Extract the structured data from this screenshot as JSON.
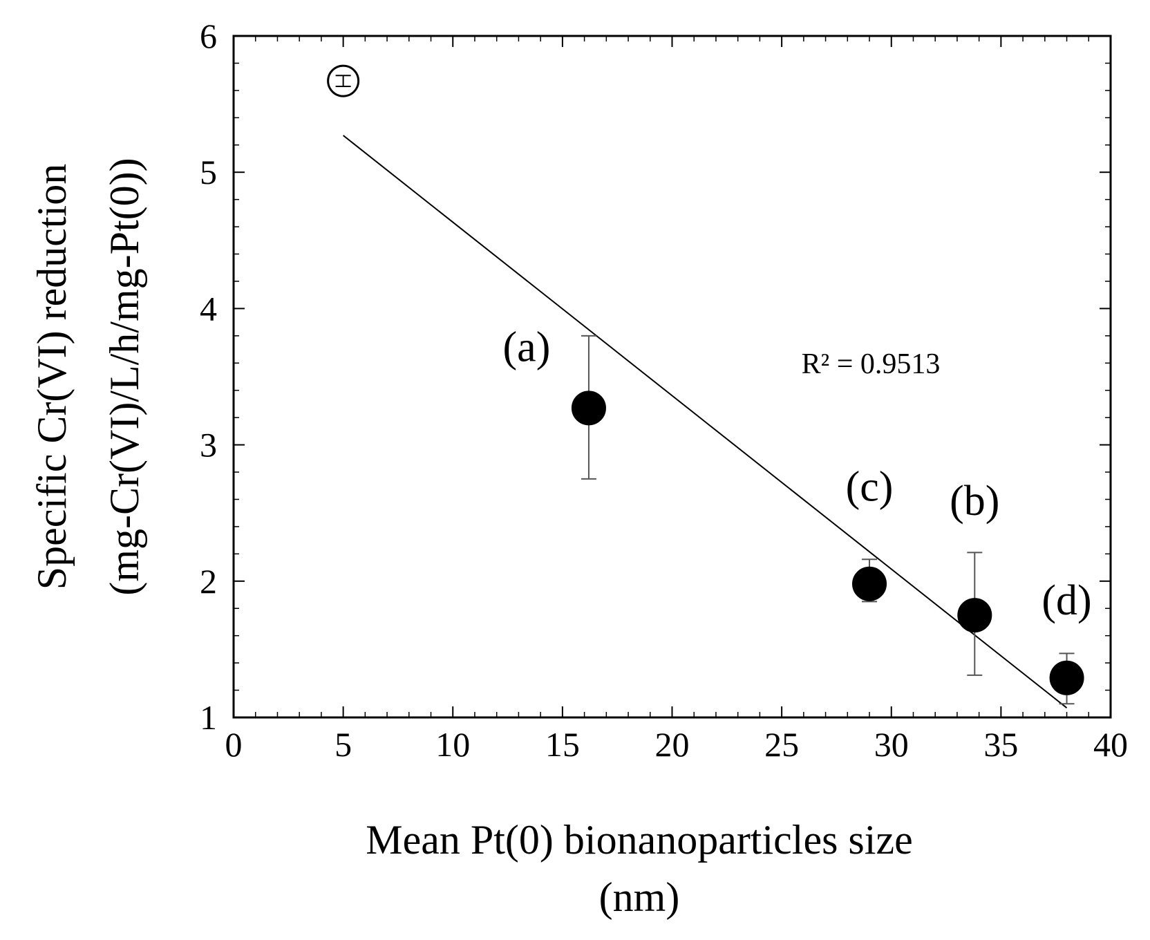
{
  "chart_data": {
    "type": "scatter",
    "xlabel": [
      "Mean Pt(0) bionanoparticles size",
      "(nm)"
    ],
    "ylabel": [
      "Specific Cr(VI) reduction",
      "(mg-Cr(VI)/L/h/mg-Pt(0))"
    ],
    "xlim": [
      0,
      40
    ],
    "ylim": [
      1,
      6
    ],
    "x_ticks": [
      0,
      5,
      10,
      15,
      20,
      25,
      30,
      35,
      40
    ],
    "y_ticks": [
      1,
      2,
      3,
      4,
      5,
      6
    ],
    "points": [
      {
        "label": "",
        "x": 5.0,
        "y": 5.67,
        "err_low": 5.63,
        "err_high": 5.71,
        "style": "open"
      },
      {
        "label": "(a)",
        "x": 16.2,
        "y": 3.27,
        "err_low": 2.75,
        "err_high": 3.8,
        "style": "filled"
      },
      {
        "label": "(c)",
        "x": 29.0,
        "y": 1.98,
        "err_low": 1.85,
        "err_high": 2.16,
        "style": "filled"
      },
      {
        "label": "(b)",
        "x": 33.8,
        "y": 1.75,
        "err_low": 1.31,
        "err_high": 2.21,
        "style": "filled"
      },
      {
        "label": "(d)",
        "x": 38.0,
        "y": 1.29,
        "err_low": 1.1,
        "err_high": 1.47,
        "style": "filled"
      }
    ],
    "trendline": {
      "x": [
        5.0,
        38.0
      ],
      "y": [
        5.27,
        1.07
      ]
    },
    "annotation": "R² = 0.9513"
  }
}
